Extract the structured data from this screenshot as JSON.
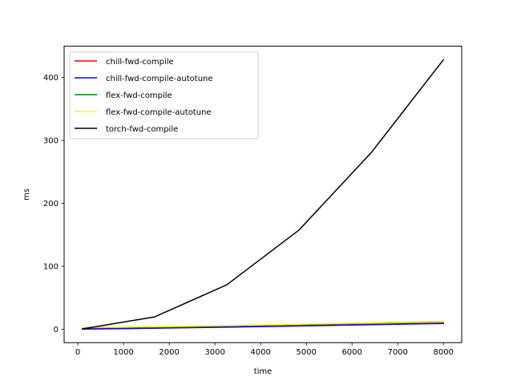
{
  "chart_data": {
    "type": "line",
    "title": "",
    "xlabel": "time",
    "ylabel": "ms",
    "xlim": [
      -300,
      8400
    ],
    "ylim": [
      -21.4,
      449.6
    ],
    "xticks": [
      0,
      1000,
      2000,
      3000,
      4000,
      5000,
      6000,
      7000,
      8000
    ],
    "yticks": [
      0,
      100,
      200,
      300,
      400
    ],
    "grid": false,
    "legend_position": "upper-left",
    "series": [
      {
        "name": "chill-fwd-compile",
        "color": "#ff0000",
        "x": [
          100,
          1680,
          3260,
          4840,
          6420,
          8000
        ],
        "y": [
          0.3,
          1.8,
          3.6,
          5.6,
          7.6,
          9.6
        ]
      },
      {
        "name": "chill-fwd-compile-autotune",
        "color": "#0000ff",
        "x": [
          100,
          1680,
          3260,
          4840,
          6420,
          8000
        ],
        "y": [
          0.2,
          1.6,
          3.3,
          5.2,
          7.2,
          9.1
        ]
      },
      {
        "name": "flex-fwd-compile",
        "color": "#008000",
        "x": [
          100,
          1680,
          3260,
          4840,
          6420,
          8000
        ],
        "y": [
          2.6,
          3.6,
          5.4,
          7.5,
          9.9,
          12.2
        ]
      },
      {
        "name": "flex-fwd-compile-autotune",
        "color": "#ffff00",
        "x": [
          100,
          1680,
          3260,
          4840,
          6420,
          8000
        ],
        "y": [
          2.8,
          3.9,
          5.7,
          7.9,
          10.3,
          12.6
        ]
      },
      {
        "name": "torch-fwd-compile",
        "color": "#000000",
        "x": [
          100,
          1680,
          3260,
          4840,
          6420,
          8000
        ],
        "y": [
          0.5,
          19.5,
          70.5,
          157.5,
          280.5,
          428.0
        ]
      }
    ]
  }
}
